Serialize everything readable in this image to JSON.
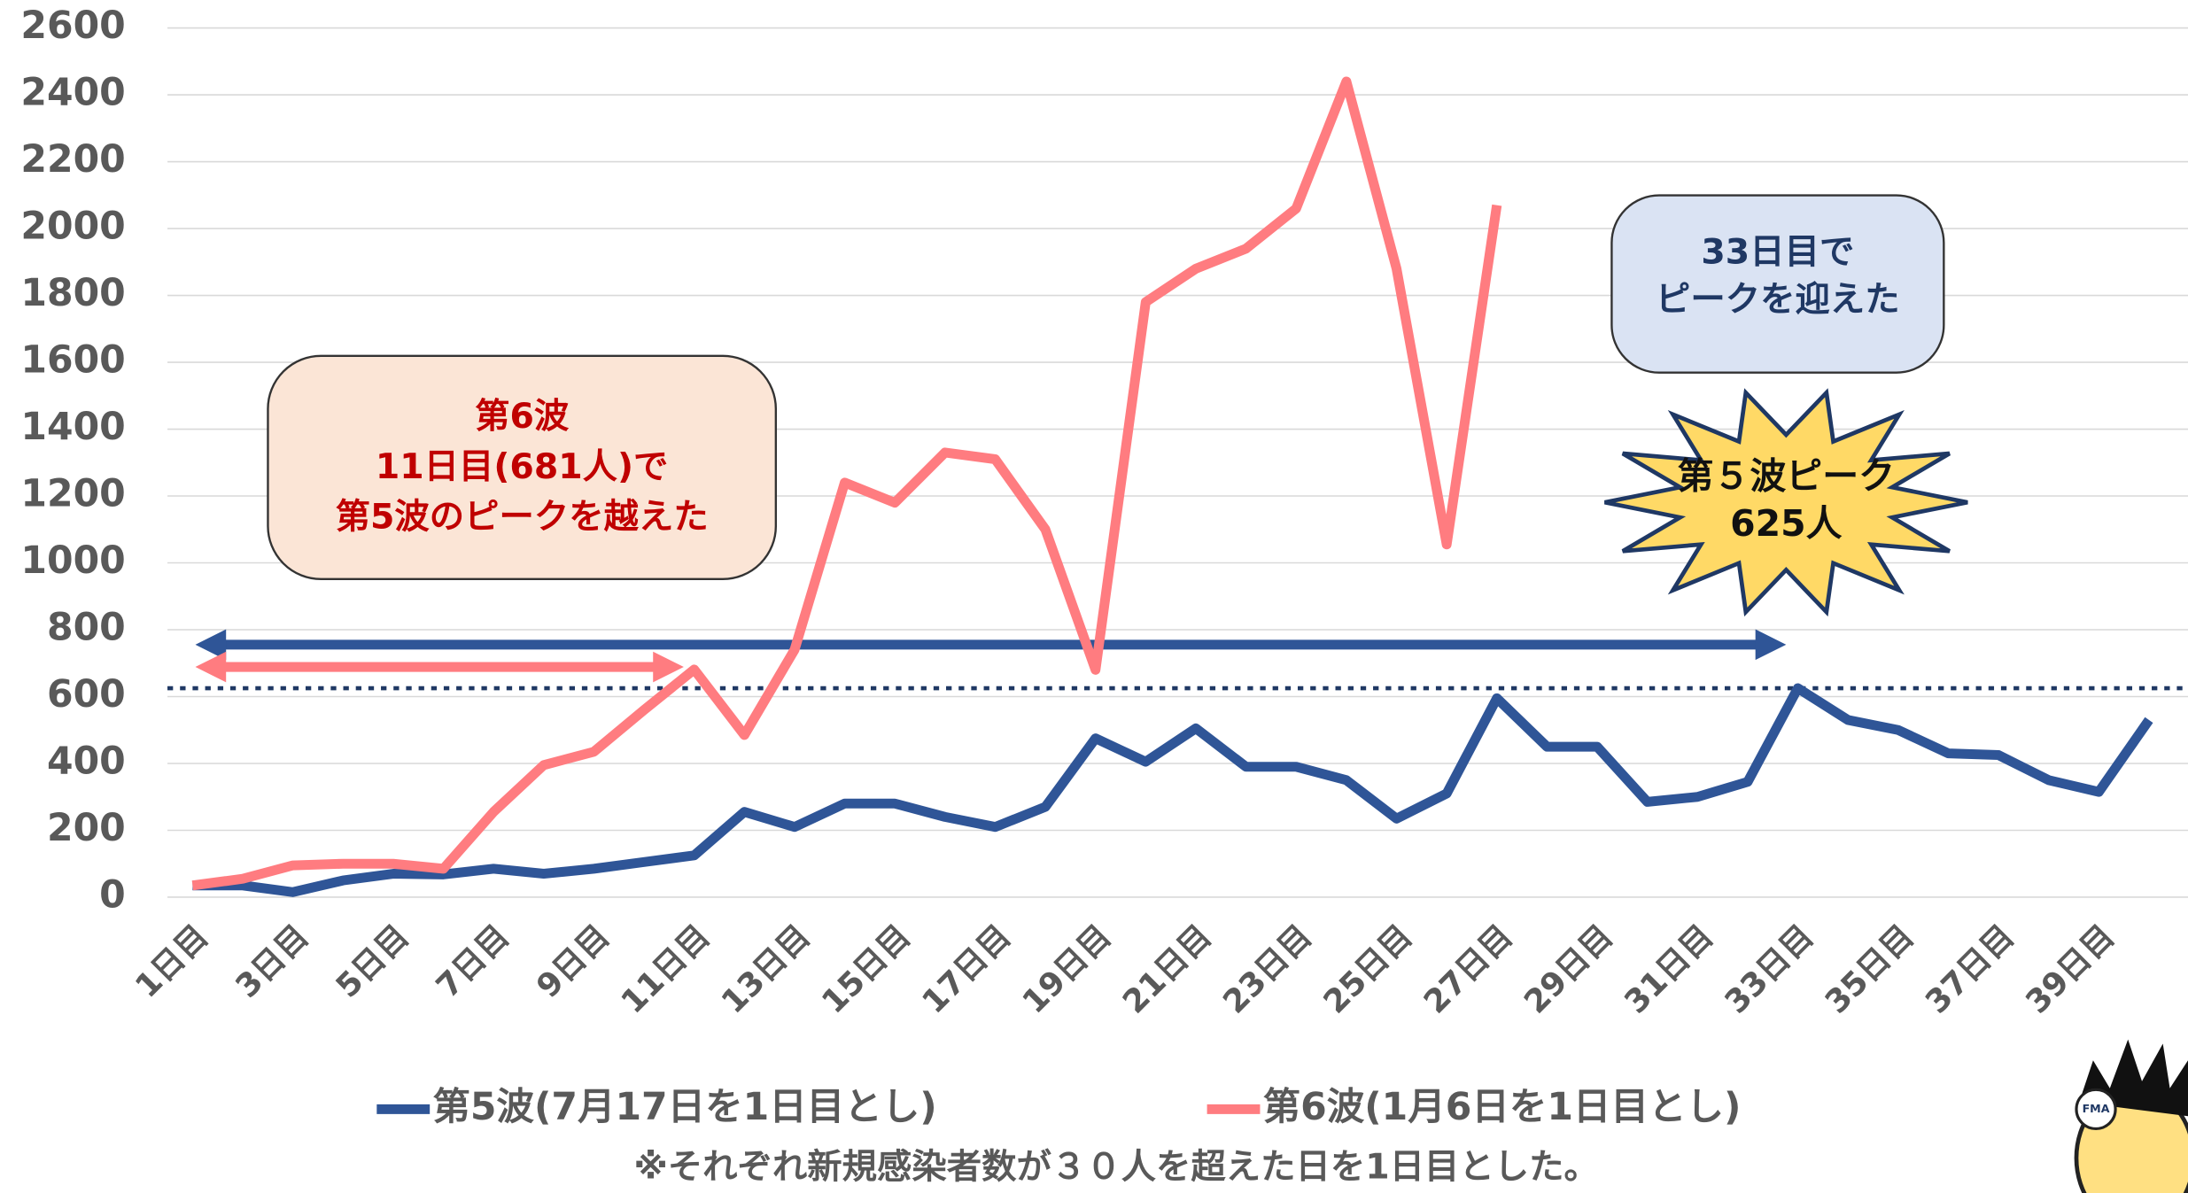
{
  "chart_data": {
    "type": "line",
    "categories": [
      "1日目",
      null,
      "3日目",
      null,
      "5日目",
      null,
      "7日目",
      null,
      "9日目",
      null,
      "11日目",
      null,
      "13日目",
      null,
      "15日目",
      null,
      "17日目",
      null,
      "19日目",
      null,
      "21日目",
      null,
      "23日目",
      null,
      "25日目",
      null,
      "27日目",
      null,
      "29日目",
      null,
      "31日目",
      null,
      "33日目",
      null,
      "35日目",
      null,
      "37日目",
      null,
      "39日目",
      null
    ],
    "series": [
      {
        "name": "第5波(7月17日を1日目とし)",
        "color": "#2f5597",
        "values": [
          35,
          35,
          15,
          50,
          70,
          68,
          85,
          70,
          85,
          105,
          125,
          255,
          210,
          280,
          280,
          240,
          210,
          270,
          475,
          405,
          505,
          390,
          390,
          350,
          235,
          310,
          595,
          450,
          450,
          285,
          300,
          345,
          625,
          530,
          500,
          430,
          425,
          350,
          315,
          530
        ]
      },
      {
        "name": "第6波(1月6日を1日目とし)",
        "color": "#ff7c80",
        "values": [
          35,
          55,
          95,
          100,
          100,
          85,
          255,
          395,
          435,
          560,
          681,
          485,
          740,
          1240,
          1180,
          1330,
          1310,
          1100,
          680,
          1780,
          1880,
          1940,
          2060,
          2440,
          1880,
          1055,
          2070,
          null,
          null,
          null,
          null,
          null,
          null,
          null,
          null,
          null,
          null,
          null,
          null,
          null
        ]
      }
    ],
    "ylim": [
      0,
      2600
    ],
    "yticks": [
      0,
      200,
      400,
      600,
      800,
      1000,
      1200,
      1400,
      1600,
      1800,
      2000,
      2200,
      2400,
      2600
    ],
    "grid": true,
    "reference_line": 625,
    "annotations": [
      {
        "lines": [
          "第6波",
          "11日目(681人)で",
          "第5波のピークを越えた"
        ]
      },
      {
        "lines": [
          "33日目で",
          "ピークを迎えた"
        ]
      },
      {
        "lines": [
          "第５波ピーク",
          "625人"
        ]
      }
    ],
    "footnote": "※それぞれ新規感染者数が３０人を超えた日を1日目とした。"
  }
}
